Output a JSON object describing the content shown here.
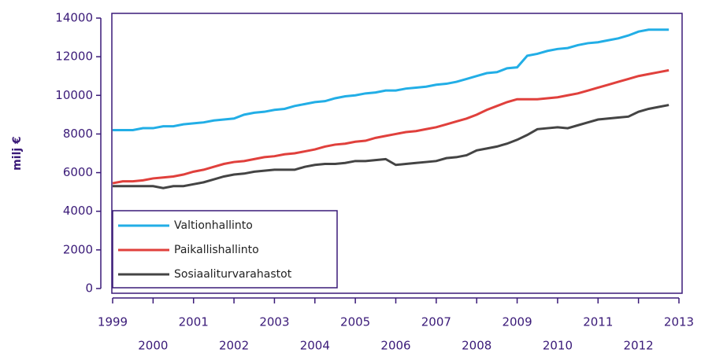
{
  "chart_data": {
    "type": "line",
    "ylabel": "milj €",
    "x": [
      1999,
      1999.25,
      1999.5,
      1999.75,
      2000,
      2000.25,
      2000.5,
      2000.75,
      2001,
      2001.25,
      2001.5,
      2001.75,
      2002,
      2002.25,
      2002.5,
      2002.75,
      2003,
      2003.25,
      2003.5,
      2003.75,
      2004,
      2004.25,
      2004.5,
      2004.75,
      2005,
      2005.25,
      2005.5,
      2005.75,
      2006,
      2006.25,
      2006.5,
      2006.75,
      2007,
      2007.25,
      2007.5,
      2007.75,
      2008,
      2008.25,
      2008.5,
      2008.75,
      2009,
      2009.25,
      2009.5,
      2009.75,
      2010,
      2010.25,
      2010.5,
      2010.75,
      2011,
      2011.25,
      2011.5,
      2011.75,
      2012,
      2012.25,
      2012.5,
      2012.75
    ],
    "series": [
      {
        "name": "Valtionhallinto",
        "color": "#22aee6",
        "values": [
          8200,
          8200,
          8200,
          8300,
          8300,
          8400,
          8400,
          8500,
          8550,
          8600,
          8700,
          8750,
          8800,
          9000,
          9100,
          9150,
          9250,
          9300,
          9450,
          9550,
          9650,
          9700,
          9850,
          9950,
          10000,
          10100,
          10150,
          10250,
          10250,
          10350,
          10400,
          10450,
          10550,
          10600,
          10700,
          10850,
          11000,
          11150,
          11200,
          11400,
          11450,
          12050,
          12150,
          12300,
          12400,
          12450,
          12600,
          12700,
          12750,
          12850,
          12950,
          13100,
          13300,
          13400,
          13400,
          13400
        ]
      },
      {
        "name": "Paikallishallinto",
        "color": "#e0403c",
        "values": [
          5450,
          5550,
          5550,
          5600,
          5700,
          5750,
          5800,
          5900,
          6050,
          6150,
          6300,
          6450,
          6550,
          6600,
          6700,
          6800,
          6850,
          6950,
          7000,
          7100,
          7200,
          7350,
          7450,
          7500,
          7600,
          7650,
          7800,
          7900,
          8000,
          8100,
          8150,
          8250,
          8350,
          8500,
          8650,
          8800,
          9000,
          9250,
          9450,
          9650,
          9800,
          9800,
          9800,
          9850,
          9900,
          10000,
          10100,
          10250,
          10400,
          10550,
          10700,
          10850,
          11000,
          11100,
          11200,
          11300
        ]
      },
      {
        "name": "Sosiaaliturvarahastot",
        "color": "#444444",
        "values": [
          5300,
          5300,
          5300,
          5300,
          5300,
          5200,
          5300,
          5300,
          5400,
          5500,
          5650,
          5800,
          5900,
          5950,
          6050,
          6100,
          6150,
          6150,
          6150,
          6300,
          6400,
          6450,
          6450,
          6500,
          6600,
          6600,
          6650,
          6700,
          6400,
          6450,
          6500,
          6550,
          6600,
          6750,
          6800,
          6900,
          7150,
          7250,
          7350,
          7500,
          7700,
          7950,
          8250,
          8300,
          8350,
          8300,
          8450,
          8600,
          8750,
          8800,
          8850,
          8900,
          9150,
          9300,
          9400,
          9500
        ]
      }
    ],
    "xlim": [
      1999,
      2013
    ],
    "xticks": [
      1999,
      2000,
      2001,
      2002,
      2003,
      2004,
      2005,
      2006,
      2007,
      2008,
      2009,
      2010,
      2011,
      2012,
      2013
    ],
    "ylim": [
      0,
      14000
    ],
    "yticks": [
      0,
      2000,
      4000,
      6000,
      8000,
      10000,
      12000,
      14000
    ],
    "legend": "lower left"
  }
}
